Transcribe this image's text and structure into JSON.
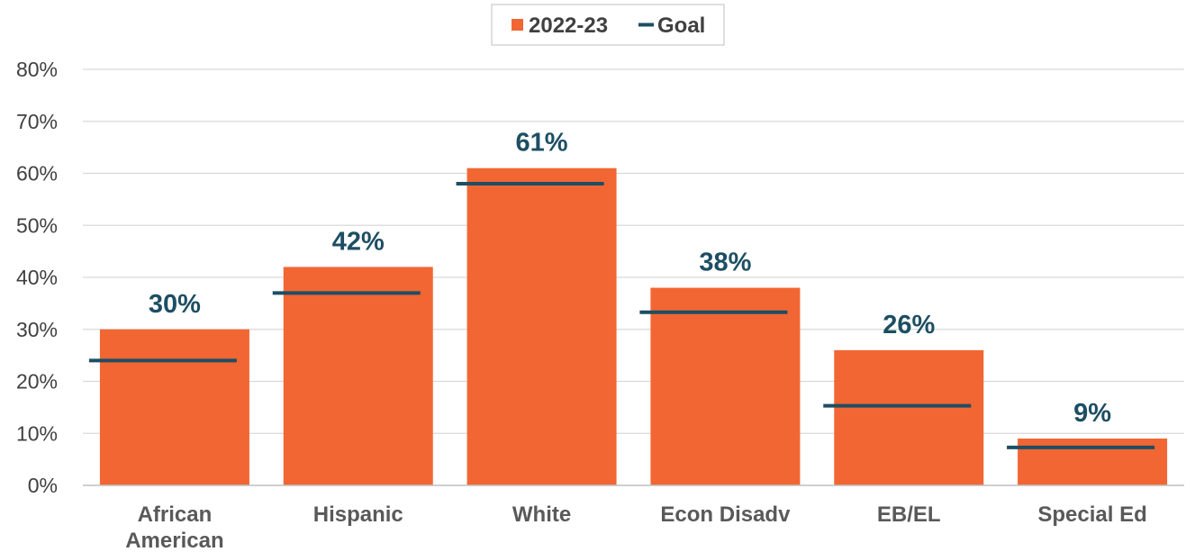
{
  "chart_data": {
    "type": "bar",
    "categories": [
      [
        "African",
        "American"
      ],
      [
        "Hispanic"
      ],
      [
        "White"
      ],
      [
        "Econ Disadv"
      ],
      [
        "EB/EL"
      ],
      [
        "Special Ed"
      ]
    ],
    "series": [
      {
        "name": "2022-23",
        "type": "bar",
        "values": [
          30,
          42,
          61,
          38,
          26,
          9
        ]
      },
      {
        "name": "Goal",
        "type": "marker",
        "values": [
          24,
          37,
          58,
          33.3,
          15.3,
          7.3
        ]
      }
    ],
    "data_labels": [
      "30%",
      "42%",
      "61%",
      "38%",
      "26%",
      "9%"
    ],
    "y_ticks": [
      "0%",
      "10%",
      "20%",
      "30%",
      "40%",
      "50%",
      "60%",
      "70%",
      "80%"
    ],
    "ylim": [
      0,
      80
    ],
    "grid": true,
    "legend_position": "top-center",
    "colors": {
      "bar": "#F26633",
      "goal": "#1D4E63",
      "data_label": "#1D4E63"
    }
  }
}
